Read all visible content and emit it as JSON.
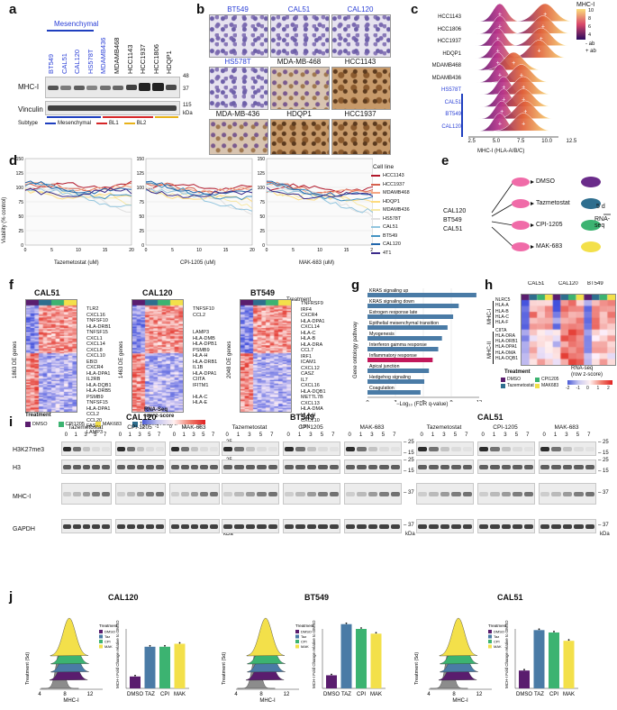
{
  "panels": {
    "a": "a",
    "b": "b",
    "c": "c",
    "d": "d",
    "e": "e",
    "f": "f",
    "g": "g",
    "h": "h",
    "i": "i",
    "j": "j"
  },
  "a": {
    "group_label": "Mesenchymal",
    "cell_lines": [
      "BT549",
      "CAL51",
      "CAL120",
      "HS578T",
      "MDAMB436",
      "MDAMB468",
      "HCC1143",
      "HCC1937",
      "HCC1806",
      "HDQP1"
    ],
    "rows": [
      "MHC-I",
      "Vinculin"
    ],
    "markers": [
      "48",
      "37",
      "115"
    ],
    "kda": "kDa",
    "subtype_label": "Subtype",
    "legend": [
      {
        "name": "Mesenchymal",
        "color": "#1f3fbf"
      },
      {
        "name": "BL1",
        "color": "#d62728"
      },
      {
        "name": "BL2",
        "color": "#e8b21a"
      }
    ]
  },
  "b": {
    "tiles": [
      "BT549",
      "CAL51",
      "CAL120",
      "HS578T",
      "MDA-MB-468",
      "HCC1143",
      "MDA-MB-436",
      "HDQP1",
      "HCC1937"
    ]
  },
  "c": {
    "rows": [
      "HCC1143",
      "HCC1806",
      "HCC1937",
      "HDQP1",
      "MDAMB468",
      "MDAMB436",
      "HS578T",
      "CAL51",
      "BT549",
      "CAL120"
    ],
    "xticks": [
      "2.5",
      "5.0",
      "7.5",
      "10.0",
      "12.5"
    ],
    "xlabel": "MHC-I (HLA-A/B/C)",
    "legend_title": "MHC-I",
    "legend_ticks": [
      "10",
      "8",
      "6",
      "4"
    ],
    "legend_items": [
      "- ab",
      "+ ab"
    ]
  },
  "d": {
    "ylabel": "Viability (% control)",
    "yticks": [
      "150",
      "125",
      "100",
      "75",
      "50",
      "25",
      "0"
    ],
    "panels": [
      {
        "xlabel": "Tazemetostat (uM)",
        "xticks": [
          "0",
          "5",
          "10",
          "15",
          "20"
        ]
      },
      {
        "xlabel": "CPI-1205 (uM)",
        "xticks": [
          "0",
          "5",
          "10",
          "15",
          "20"
        ]
      },
      {
        "xlabel": "MAK-683 (uM)",
        "xticks": [
          "0",
          "5",
          "10",
          "15",
          "20"
        ]
      }
    ],
    "legend_title": "Cell line",
    "legend": [
      {
        "name": "HCC1143",
        "color": "#b2182b"
      },
      {
        "name": "HCC1937",
        "color": "#d6604d"
      },
      {
        "name": "MDAMB468",
        "color": "#f4a582"
      },
      {
        "name": "HDQP1",
        "color": "#fddb7f"
      },
      {
        "name": "MDAMB436",
        "color": "#f6e8a5"
      },
      {
        "name": "HS578T",
        "color": "#e0e0e0"
      },
      {
        "name": "CAL51",
        "color": "#92c5de"
      },
      {
        "name": "BT549",
        "color": "#4393c3"
      },
      {
        "name": "CAL120",
        "color": "#2166ac"
      },
      {
        "name": "4T1",
        "color": "#3a2a8a"
      }
    ]
  },
  "e": {
    "lines": [
      "CAL120",
      "BT549",
      "CAL51"
    ],
    "treatments": [
      "DMSO",
      "Tazmetostat",
      "CPI-1205",
      "MAK-683"
    ],
    "duration": "5 d",
    "readout": "RNA-seq",
    "colors": [
      "#6a2c8a",
      "#2e6e8e",
      "#3cb371",
      "#f3e04a"
    ]
  },
  "f": {
    "panels": [
      {
        "title": "CAL51",
        "ylabel": "1863 DE genes",
        "genes": "TLR2\nCXCL16\nTNFSF10\nHLA-DRB1\nTNFSF15\nCXCL1\nCXCL14\nCXCL8\nCXCL10\nEBI3\nCXCR4\nHLA-DPA1\nIL2RB\nHLA-DQB1\nHLA-DRB5\nPSMB9\nTNFSF15\nHLA-DPA1\nCCL2\nCCL20\nFAS\nLAMP3"
      },
      {
        "title": "CAL120",
        "ylabel": "1463 DE genes",
        "genes": "TNFSF10\nCCL2\n\n\nLAMP3\nHLA-DMB\nHLA-DPB1\nPSMB9\nHLA-H\nHLA-DRB1\nIL1B\nHLA-DPA1\nCIITA\nIFITM1\n\nHLA-C\nHLA-E"
      },
      {
        "title": "BT549",
        "ylabel": "2048 DE genes",
        "genes": "TNFRSF9\nIRF4\nCXCR4\nHLA-DPA1\nCXCL14\nHLA-C\nHLA-B\nHLA-DRA\nCCL7\nIRF1\nICAM1\nCXCL12\nCASZ\nIL7\nCXCL16\nHLA-DQB1\nMETTL7B\nCXCL13\nHLA-DMA\nHLA-H\nCXCL10\nLYN"
      }
    ],
    "treatment_label": "Treatment",
    "legend_title": "Treatment",
    "legend": [
      {
        "name": "DMSO",
        "color": "#5a1d6e"
      },
      {
        "name": "CPI1205",
        "color": "#3cb371"
      },
      {
        "name": "MAK683",
        "color": "#f3e04a"
      },
      {
        "name": "TAZEMETOSTAT",
        "color": "#2e6e8e"
      }
    ],
    "scale_title": "RNA-Seq\nrow z-score",
    "scale_ticks": [
      "-2",
      "-1",
      "0",
      "1",
      "2"
    ]
  },
  "g": {
    "ylabel": "Gene ontology pathway",
    "xlabel": "−Log₁₀ (FDR q-value)",
    "xticks": [
      "0",
      "3",
      "6",
      "9",
      "12"
    ],
    "xlim": [
      0,
      12
    ],
    "chart_data": {
      "type": "bar",
      "categories": [
        "KRAS signaling up",
        "KRAS signaling down",
        "Estrogen response late",
        "Epithelial mesenchymal transition",
        "Myogenesis",
        "Interferon gamma response",
        "Inflammatory response",
        "Apical junction",
        "Hedgehog signaling",
        "Coagulation"
      ],
      "values": [
        11.7,
        9.8,
        9.2,
        8.6,
        8.0,
        7.6,
        7.0,
        6.6,
        6.1,
        5.7
      ],
      "colors": [
        "#4a7ba6",
        "#4a7ba6",
        "#4a7ba6",
        "#4a7ba6",
        "#4a7ba6",
        "#4a7ba6",
        "#c2185b",
        "#4a7ba6",
        "#4a7ba6",
        "#4a7ba6"
      ],
      "xlabel": "−Log10 (FDR q-value)",
      "ylabel": "Gene ontology pathway",
      "xlim": [
        0,
        12
      ]
    }
  },
  "h": {
    "cols": [
      "CAL51",
      "CAL120",
      "BT549"
    ],
    "group1": "MHC-I",
    "group2": "MHC-II",
    "genes1": [
      "NLRC5",
      "HLA-A",
      "HLA-B",
      "HLA-C",
      "HLA-F"
    ],
    "genes2": [
      "CIITA",
      "HLA-DRA",
      "HLA-DRB1",
      "HLA-DPA1",
      "HLA-DMA",
      "HLA-DQB1"
    ],
    "legend_title": "Treatment",
    "legend": [
      {
        "name": "DMSO",
        "color": "#5a1d6e"
      },
      {
        "name": "CPI1205",
        "color": "#3cb371"
      },
      {
        "name": "Tazemetostat",
        "color": "#2e6e8e"
      },
      {
        "name": "MAK683",
        "color": "#f3e04a"
      }
    ],
    "scale_title": "RNA-seq\n(row z-score)",
    "scale_ticks": [
      "-2",
      "-1",
      "0",
      "1",
      "2"
    ]
  },
  "i": {
    "cell_lines": [
      "CAL120",
      "BT549",
      "CAL51"
    ],
    "drugs": [
      "Tazemetostat",
      "CPI-1205",
      "MAK-683"
    ],
    "days": [
      "0",
      "1",
      "3",
      "5",
      "7"
    ],
    "rows": [
      "H3K27me3",
      "H3",
      "MHC-I",
      "GAPDH"
    ],
    "markers": [
      "25",
      "15",
      "25",
      "15",
      "37",
      "37"
    ],
    "kda": "kDa"
  },
  "j": {
    "panels": [
      {
        "title": "CAL120",
        "values": [
          1.0,
          1.5,
          1.5,
          1.55
        ],
        "ylim": [
          0.8,
          1.8
        ]
      },
      {
        "title": "BT549",
        "values": [
          1.02,
          1.88,
          1.8,
          1.72
        ],
        "ylim": [
          0.8,
          1.8
        ]
      },
      {
        "title": "CAL51",
        "values": [
          1.1,
          1.78,
          1.74,
          1.6
        ],
        "ylim": [
          0.8,
          1.8
        ]
      }
    ],
    "categories": [
      "DMSO",
      "TAZ",
      "CPI",
      "MAK"
    ],
    "bar_colors": [
      "#5a1d6e",
      "#4a7ba6",
      "#3cb371",
      "#f3e04a"
    ],
    "ridge_ylabel": "Treatment (5d)",
    "ridge_xlabel": "MHC-I",
    "ridge_xticks": [
      "4",
      "8",
      "12"
    ],
    "bar_ylabel": "MCH-I Fold Change\nrelative to DMSO",
    "legend_title": "Treatment",
    "legend": [
      "DMSO",
      "Taz",
      "CPI",
      "MAK"
    ]
  }
}
